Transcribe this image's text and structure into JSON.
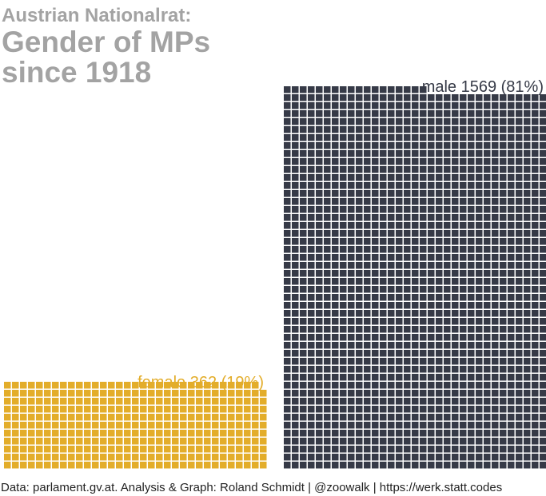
{
  "supertitle": "Austrian Nationalrat:",
  "title_lines": [
    "Gender of MPs",
    "since 1918"
  ],
  "caption": "Data: parlament.gv.at. Analysis & Graph: Roland Schmidt | @zoowalk | https://werk.statt.codes",
  "chart_data": {
    "type": "waffle",
    "title": "Austrian Nationalrat: Gender of MPs since 1918",
    "units_per_row": 33,
    "groups": [
      {
        "name": "female",
        "count": 362,
        "percent": 19,
        "label": "female 362 (19%)",
        "color": "#E3AD2A"
      },
      {
        "name": "male",
        "count": 1569,
        "percent": 81,
        "label": "male 1569 (81%)",
        "color": "#363A47"
      }
    ]
  }
}
